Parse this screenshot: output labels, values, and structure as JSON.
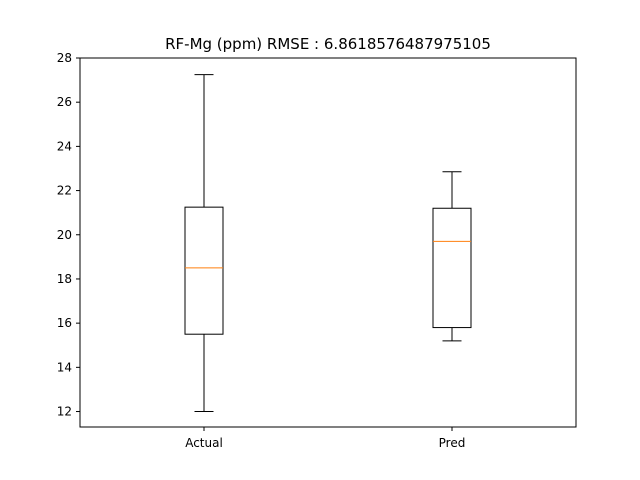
{
  "chart_data": {
    "type": "boxplot",
    "title": "RF-Mg (ppm) RMSE : 6.8618576487975105",
    "xlabel": "",
    "ylabel": "",
    "categories": [
      "Actual",
      "Pred"
    ],
    "boxes": [
      {
        "name": "Actual",
        "whisker_low": 12.0,
        "q1": 15.5,
        "median": 18.5,
        "q3": 21.25,
        "whisker_high": 27.25
      },
      {
        "name": "Pred",
        "whisker_low": 15.2,
        "q1": 15.8,
        "median": 19.7,
        "q3": 21.2,
        "whisker_high": 22.85
      }
    ],
    "ylim": [
      11.3,
      28.0
    ],
    "yticks": [
      12,
      14,
      16,
      18,
      20,
      22,
      24,
      26,
      28
    ],
    "grid": false,
    "colors": {
      "box": "#000000",
      "median": "#ff7f0e"
    }
  }
}
